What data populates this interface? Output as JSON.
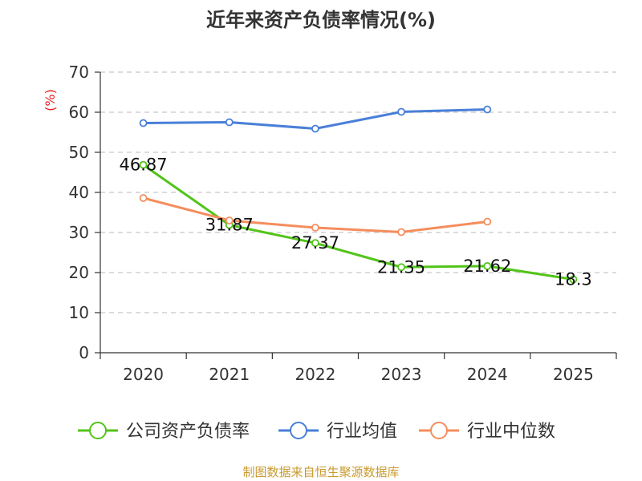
{
  "chart_data": {
    "type": "line",
    "title": "近年来资产负债率情况(%)",
    "ylabel": "(%)",
    "xlabel": "",
    "categories": [
      "2020",
      "2021",
      "2022",
      "2023",
      "2024",
      "2025"
    ],
    "ylim": [
      0,
      70
    ],
    "yticks": [
      0,
      10,
      20,
      30,
      40,
      50,
      60,
      70
    ],
    "grid": true,
    "legend_position": "bottom",
    "series": [
      {
        "name": "公司资产负债率",
        "color": "#52c41a",
        "values": [
          46.87,
          31.87,
          27.37,
          21.35,
          21.62,
          18.3
        ],
        "labels": [
          "46.87",
          "31.87",
          "27.37",
          "21.35",
          "21.62",
          "18.3"
        ]
      },
      {
        "name": "行业均值",
        "color": "#4a7fd8",
        "values": [
          57.3,
          57.5,
          55.9,
          60.1,
          60.7,
          null
        ]
      },
      {
        "name": "行业中位数",
        "color": "#f58d5d",
        "values": [
          38.6,
          33.0,
          31.2,
          30.1,
          32.7,
          null
        ]
      }
    ]
  },
  "source": "制图数据来自恒生聚源数据库"
}
